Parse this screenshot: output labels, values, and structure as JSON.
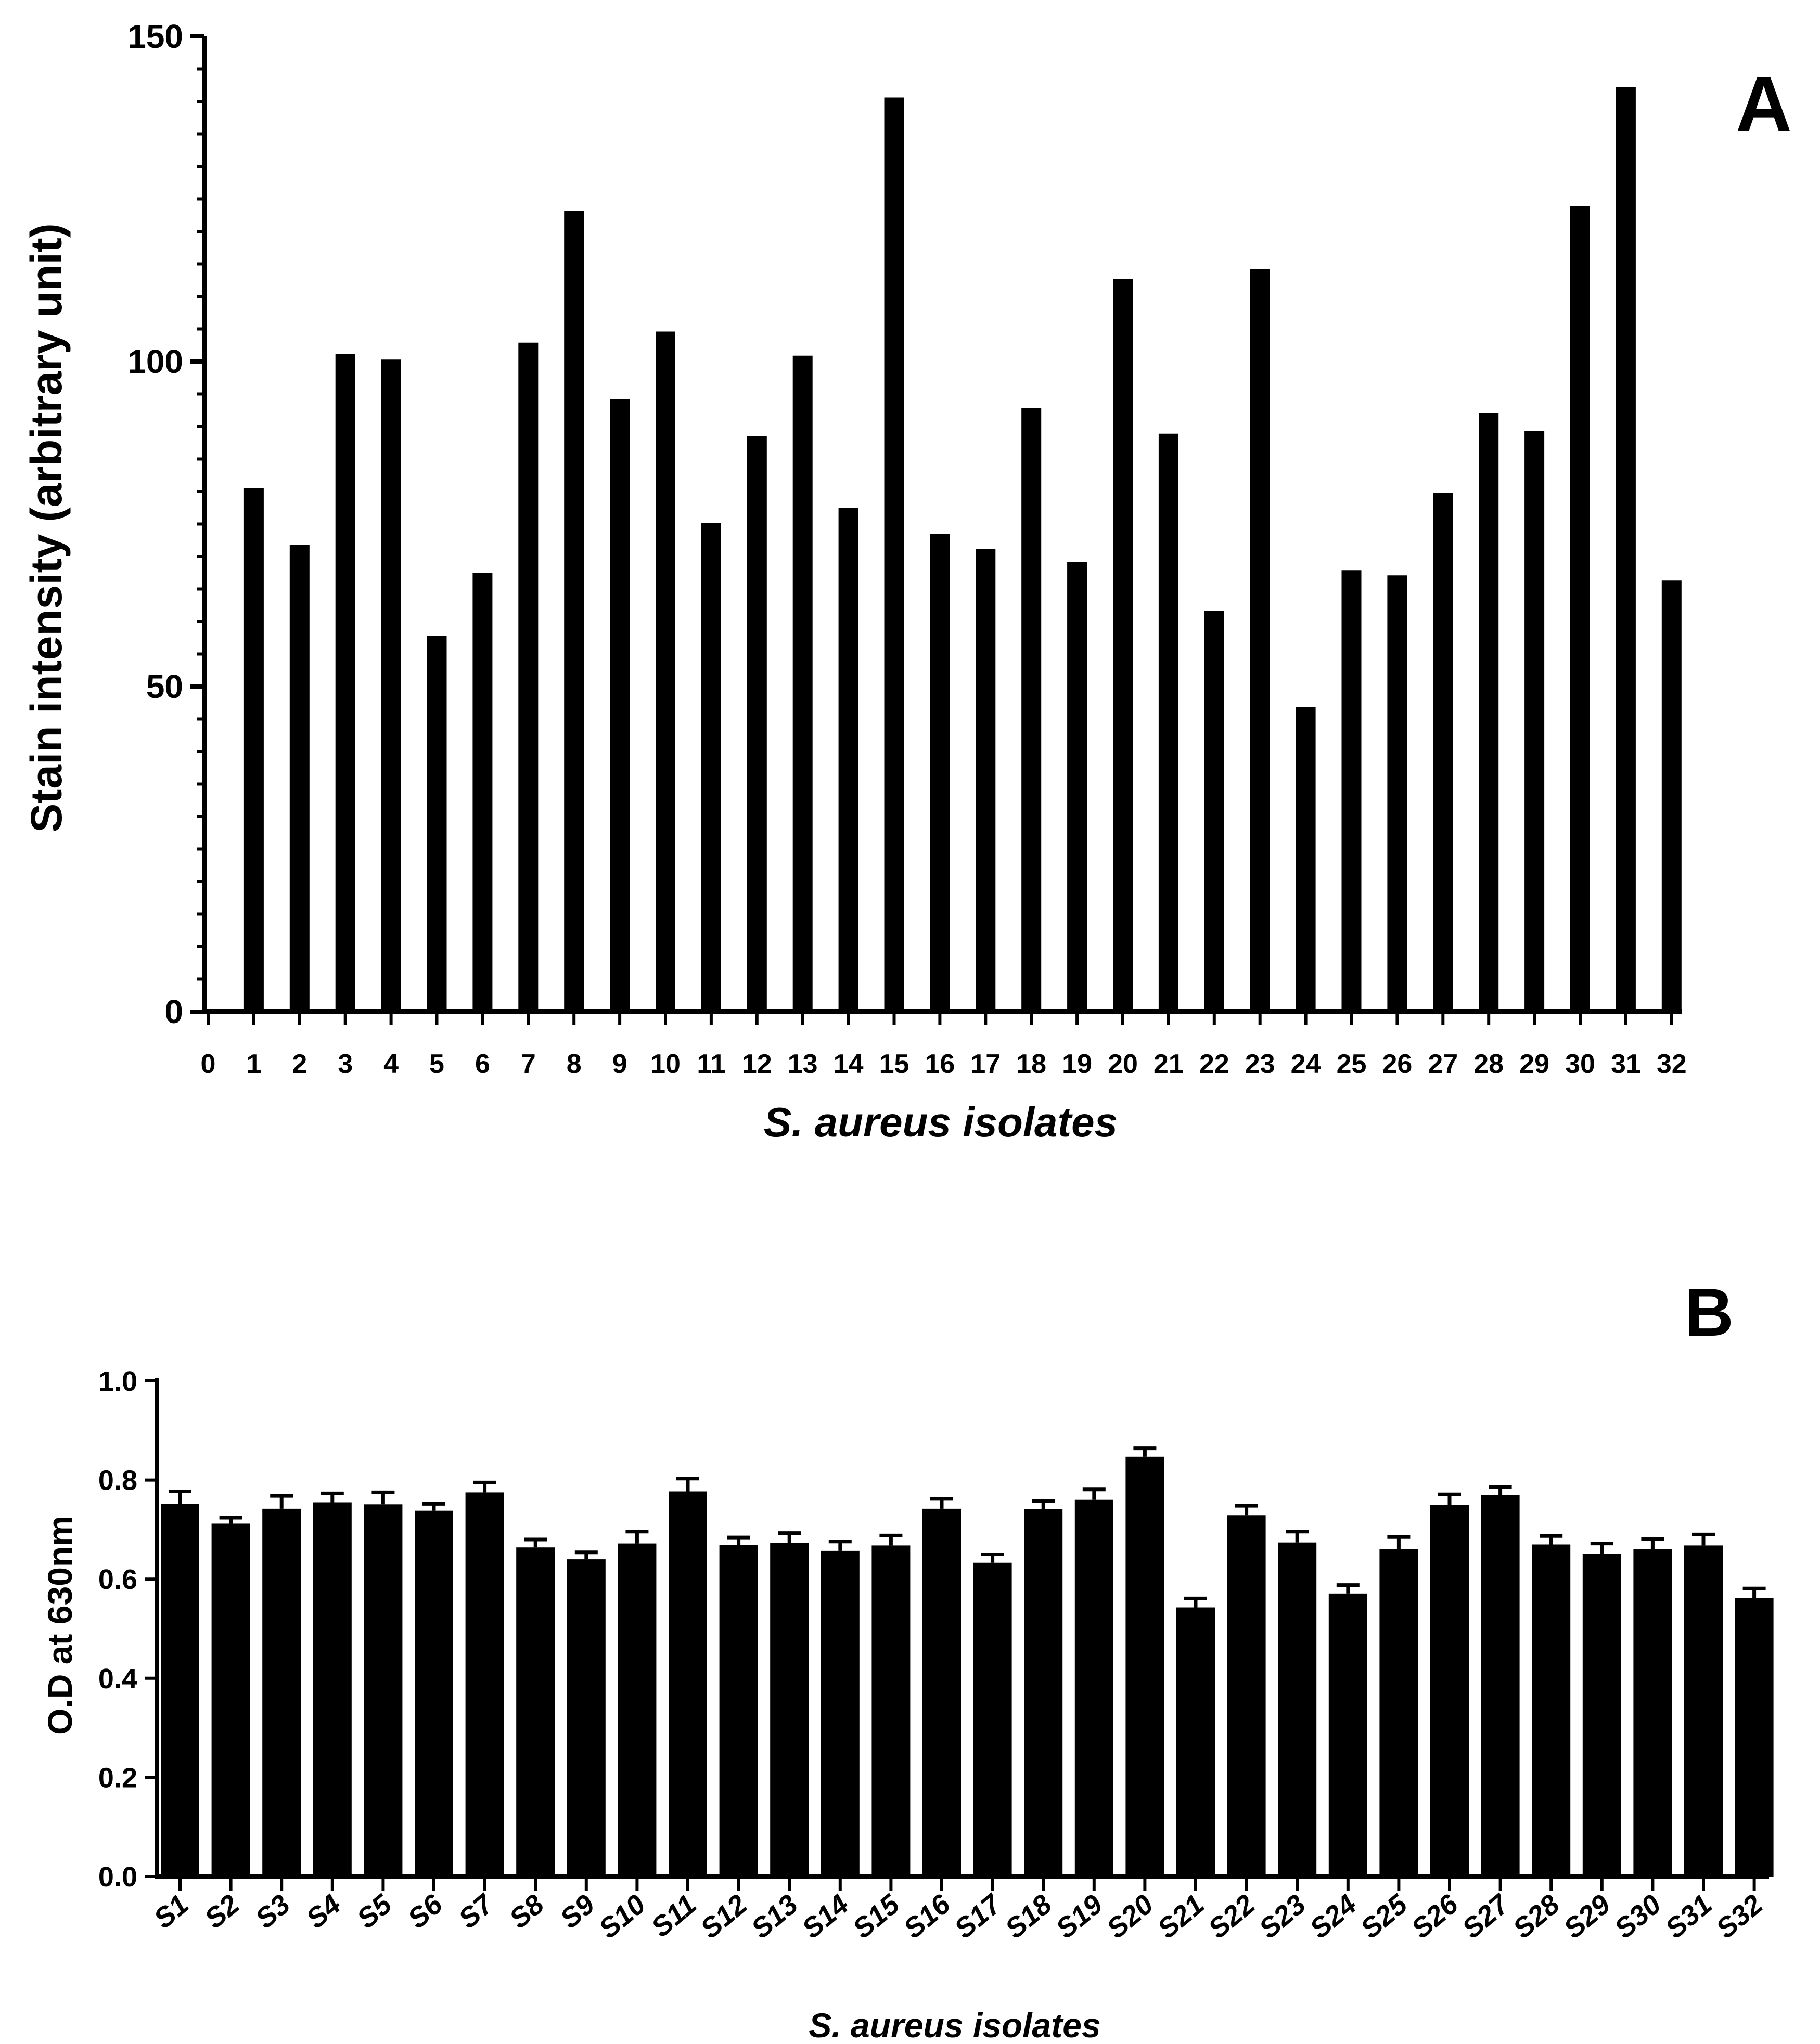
{
  "chart_data": [
    {
      "type": "bar",
      "panel_label": "A",
      "title": "",
      "xlabel": "S. aureus isolates",
      "ylabel": "Stain intensity (arbitrary unit)",
      "ylim": [
        0,
        150
      ],
      "y_ticks": [
        "0",
        "50",
        "100",
        "150"
      ],
      "x_ticks": [
        "0",
        "1",
        "2",
        "3",
        "4",
        "5",
        "6",
        "7",
        "8",
        "9",
        "10",
        "11",
        "12",
        "13",
        "14",
        "15",
        "16",
        "17",
        "18",
        "19",
        "20",
        "21",
        "22",
        "23",
        "24",
        "25",
        "26",
        "27",
        "28",
        "29",
        "30",
        "31",
        "32"
      ],
      "categories": [
        "1",
        "2",
        "3",
        "4",
        "5",
        "6",
        "7",
        "8",
        "9",
        "10",
        "11",
        "12",
        "13",
        "14",
        "15",
        "16",
        "17",
        "18",
        "19",
        "20",
        "21",
        "22",
        "23",
        "24",
        "25",
        "26",
        "27",
        "28",
        "29",
        "30",
        "31",
        "32"
      ],
      "values": [
        80.5,
        71.8,
        101.2,
        100.3,
        57.8,
        67.5,
        102.9,
        123.2,
        94.2,
        104.6,
        75.2,
        88.5,
        100.9,
        77.5,
        140.6,
        73.5,
        71.2,
        92.8,
        69.2,
        112.7,
        88.9,
        61.6,
        114.2,
        46.8,
        67.9,
        67.1,
        79.8,
        92.0,
        89.3,
        123.9,
        142.2,
        66.3
      ],
      "grid": false,
      "color": "#000000"
    },
    {
      "type": "bar",
      "panel_label": "B",
      "title": "",
      "xlabel": "S. aureus isolates",
      "ylabel": "O.D at 630nm",
      "ylim": [
        0,
        1.0
      ],
      "y_ticks": [
        "0.0",
        "0.2",
        "0.4",
        "0.6",
        "0.8",
        "1.0"
      ],
      "categories": [
        "S1",
        "S2",
        "S3",
        "S4",
        "S5",
        "S6",
        "S7",
        "S8",
        "S9",
        "S10",
        "S11",
        "S12",
        "S13",
        "S14",
        "S15",
        "S16",
        "S17",
        "S18",
        "S19",
        "S20",
        "S21",
        "S22",
        "S23",
        "S24",
        "S25",
        "S26",
        "S27",
        "S28",
        "S29",
        "S30",
        "S31",
        "S32"
      ],
      "values": [
        0.752,
        0.712,
        0.742,
        0.755,
        0.751,
        0.738,
        0.775,
        0.664,
        0.64,
        0.672,
        0.777,
        0.669,
        0.673,
        0.657,
        0.668,
        0.742,
        0.633,
        0.741,
        0.76,
        0.847,
        0.543,
        0.729,
        0.674,
        0.571,
        0.66,
        0.75,
        0.77,
        0.67,
        0.651,
        0.66,
        0.668,
        0.562
      ],
      "errors": [
        0.025,
        0.012,
        0.026,
        0.018,
        0.024,
        0.014,
        0.02,
        0.016,
        0.014,
        0.024,
        0.026,
        0.015,
        0.02,
        0.019,
        0.02,
        0.02,
        0.017,
        0.017,
        0.021,
        0.017,
        0.018,
        0.019,
        0.022,
        0.017,
        0.025,
        0.021,
        0.016,
        0.017,
        0.021,
        0.021,
        0.022,
        0.019
      ],
      "grid": false,
      "color": "#000000"
    }
  ]
}
